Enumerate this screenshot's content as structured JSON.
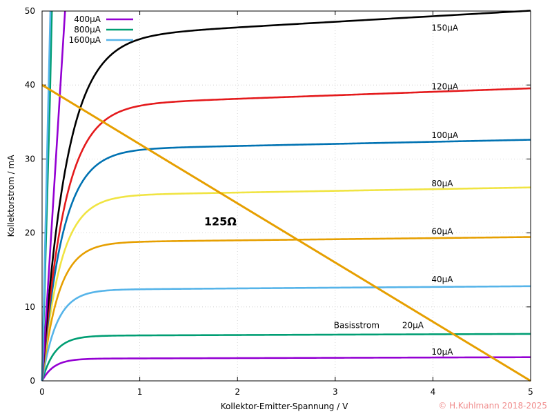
{
  "chart_data": {
    "type": "line",
    "xlabel": "Kollektor-Emitter-Spannung / V",
    "ylabel": "Kollektorstrom / mA",
    "xlim": [
      0,
      5
    ],
    "ylim": [
      0,
      50
    ],
    "xticks": [
      0,
      1,
      2,
      3,
      4,
      5
    ],
    "yticks": [
      0,
      10,
      20,
      30,
      40,
      50
    ],
    "grid": true,
    "base_current_caption": "Basisstrom",
    "series": [
      {
        "name": "10µA",
        "base_uA": 10,
        "color": "#9400d3",
        "isat": 3.0,
        "slope": 0.04,
        "vk": 0.12,
        "x": [
          0,
          0.1,
          0.2,
          0.3,
          0.5,
          1,
          2,
          3,
          4,
          5
        ],
        "y": [
          0,
          1.7,
          2.4,
          2.75,
          2.97,
          3.04,
          3.08,
          3.12,
          3.16,
          3.2
        ]
      },
      {
        "name": "20µA",
        "base_uA": 20,
        "color": "#009e73",
        "isat": 6.1,
        "slope": 0.05,
        "vk": 0.13,
        "x": [
          0,
          0.1,
          0.2,
          0.3,
          0.5,
          1,
          2,
          3,
          4,
          5
        ],
        "y": [
          0,
          3.3,
          4.7,
          5.5,
          6.05,
          6.15,
          6.2,
          6.25,
          6.3,
          6.35
        ]
      },
      {
        "name": "40µA",
        "base_uA": 40,
        "color": "#56b4e9",
        "isat": 12.3,
        "slope": 0.1,
        "vk": 0.15,
        "x": [
          0,
          0.1,
          0.2,
          0.3,
          0.5,
          1,
          2,
          3,
          4,
          5
        ],
        "y": [
          0,
          6.0,
          9.0,
          10.6,
          11.8,
          12.3,
          12.4,
          12.5,
          12.6,
          12.8
        ]
      },
      {
        "name": "60µA",
        "base_uA": 60,
        "color": "#e69f00",
        "isat": 18.7,
        "slope": 0.15,
        "vk": 0.17,
        "x": [
          0,
          0.1,
          0.2,
          0.3,
          0.5,
          1,
          2,
          3,
          4,
          5
        ],
        "y": [
          0,
          8.5,
          13.0,
          15.6,
          17.8,
          18.6,
          18.9,
          19.1,
          19.3,
          19.4
        ]
      },
      {
        "name": "80µA",
        "base_uA": 80,
        "color": "#f0e442",
        "isat": 25.0,
        "slope": 0.23,
        "vk": 0.19,
        "x": [
          0,
          0.1,
          0.2,
          0.3,
          0.5,
          1,
          2,
          3,
          4,
          5
        ],
        "y": [
          0,
          10.3,
          16.4,
          20.0,
          23.3,
          24.8,
          25.3,
          25.6,
          25.9,
          26.1
        ]
      },
      {
        "name": "100µA",
        "base_uA": 100,
        "color": "#0072b2",
        "isat": 31.2,
        "slope": 0.28,
        "vk": 0.21,
        "x": [
          0,
          0.1,
          0.2,
          0.3,
          0.5,
          1,
          2,
          3,
          4,
          5
        ],
        "y": [
          0,
          12.0,
          19.4,
          24.0,
          28.4,
          30.7,
          31.5,
          31.9,
          32.3,
          32.5
        ]
      },
      {
        "name": "120µA",
        "base_uA": 120,
        "color": "#e41a1c",
        "isat": 37.2,
        "slope": 0.47,
        "vk": 0.23,
        "x": [
          0,
          0.1,
          0.2,
          0.3,
          0.5,
          1,
          2,
          3,
          4,
          5
        ],
        "y": [
          0,
          13.5,
          22.0,
          27.6,
          33.2,
          36.8,
          37.7,
          38.4,
          39.0,
          39.5
        ]
      },
      {
        "name": "150µA",
        "base_uA": 150,
        "color": "#000000",
        "isat": 46.3,
        "slope": 0.75,
        "vk": 0.25,
        "x": [
          0,
          0.1,
          0.2,
          0.3,
          0.5,
          1,
          2,
          3,
          4,
          5
        ],
        "y": [
          0,
          15.5,
          25.3,
          32.2,
          39.7,
          45.4,
          47.2,
          48.3,
          49.2,
          49.9
        ]
      },
      {
        "name": "400µA",
        "base_uA": 400,
        "color": "#9400d3",
        "legend": true,
        "x": [
          0,
          0.08,
          0.16,
          0.235
        ],
        "y": [
          0,
          17,
          34,
          50
        ]
      },
      {
        "name": "800µA",
        "base_uA": 800,
        "color": "#009e73",
        "legend": true,
        "x": [
          0,
          0.04,
          0.08,
          0.1
        ],
        "y": [
          0,
          19,
          38,
          50
        ]
      },
      {
        "name": "1600µA",
        "base_uA": 1600,
        "color": "#56b4e9",
        "legend": true,
        "x": [
          0,
          0.03,
          0.06,
          0.085
        ],
        "y": [
          0,
          18,
          36,
          50
        ]
      }
    ],
    "load_line": {
      "label": "125Ω",
      "color": "#e69f00",
      "x": [
        0,
        5
      ],
      "y": [
        40,
        0
      ],
      "label_at": [
        1.8,
        21.5
      ]
    },
    "curve_label_positions": [
      {
        "name": "10µA",
        "at": [
          4.0,
          3.9
        ]
      },
      {
        "name": "20µA",
        "at": [
          3.7,
          7.5
        ]
      },
      {
        "name": "40µA",
        "at": [
          4.0,
          13.7
        ]
      },
      {
        "name": "60µA",
        "at": [
          4.0,
          20.2
        ]
      },
      {
        "name": "80µA",
        "at": [
          4.0,
          26.7
        ]
      },
      {
        "name": "100µA",
        "at": [
          4.0,
          33.2
        ]
      },
      {
        "name": "120µA",
        "at": [
          4.0,
          39.8
        ]
      },
      {
        "name": "150µA",
        "at": [
          4.0,
          47.7
        ]
      }
    ],
    "base_current_caption_at": [
      3.0,
      7.5
    ],
    "legend_position": "top-left",
    "copyright": "© H.Kuhlmann 2018-2025"
  }
}
